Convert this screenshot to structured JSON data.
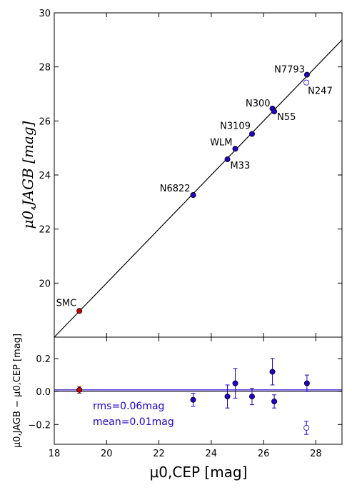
{
  "colors": {
    "point": "#2200cc",
    "smc": "#cc0000",
    "open": "#ffffff",
    "line_main": "#000000",
    "resid_zero": "#000000",
    "resid_mean": "#2200cc",
    "note": "#2200cc"
  },
  "chart_data": [
    {
      "type": "scatter",
      "title": "",
      "xlabel": "μ0,CEP [mag]",
      "ylabel": "μ0,JAGB [mag]",
      "xlim": [
        18,
        29
      ],
      "ylim": [
        18,
        30
      ],
      "x_ticks": [
        "18",
        "20",
        "22",
        "24",
        "26",
        "28"
      ],
      "y_ticks": [
        "20",
        "22",
        "24",
        "26",
        "28",
        "30"
      ],
      "identity_line": {
        "x": [
          18,
          29
        ],
        "y": [
          18,
          29
        ]
      },
      "points": [
        {
          "label": "SMC",
          "x": 18.96,
          "y": 18.97,
          "kind": "smc"
        },
        {
          "label": "N6822",
          "x": 23.31,
          "y": 23.26,
          "kind": "filled"
        },
        {
          "label": "M33",
          "x": 24.62,
          "y": 24.58,
          "kind": "filled"
        },
        {
          "label": "WLM",
          "x": 24.92,
          "y": 24.97,
          "kind": "filled"
        },
        {
          "label": "N3109",
          "x": 25.56,
          "y": 25.52,
          "kind": "filled"
        },
        {
          "label": "N300",
          "x": 26.34,
          "y": 26.46,
          "kind": "filled"
        },
        {
          "label": "N55",
          "x": 26.41,
          "y": 26.35,
          "kind": "filled"
        },
        {
          "label": "N7793",
          "x": 27.66,
          "y": 27.71,
          "kind": "filled"
        },
        {
          "label": "N247",
          "x": 27.64,
          "y": 27.42,
          "kind": "open"
        }
      ]
    },
    {
      "type": "scatter",
      "title": "",
      "xlabel": "μ0,CEP [mag]",
      "ylabel": "μ0,JAGB − μ0,CEP [mag]",
      "xlim": [
        18,
        29
      ],
      "ylim": [
        -0.32,
        0.33
      ],
      "x_ticks": [
        "18",
        "20",
        "22",
        "24",
        "26",
        "28"
      ],
      "y_ticks": [
        "−0.2",
        "0.0",
        "0.2"
      ],
      "annotations": [
        "rms=0.06mag",
        "mean=0.01mag"
      ],
      "zero_line": 0.0,
      "mean_line": 0.01,
      "points": [
        {
          "x": 18.96,
          "y": 0.01,
          "err": 0.02,
          "kind": "smc"
        },
        {
          "x": 23.31,
          "y": -0.05,
          "err": 0.04,
          "kind": "filled"
        },
        {
          "x": 24.62,
          "y": -0.03,
          "err": 0.07,
          "kind": "filled"
        },
        {
          "x": 24.92,
          "y": 0.05,
          "err": 0.09,
          "kind": "filled"
        },
        {
          "x": 25.56,
          "y": -0.03,
          "err": 0.05,
          "kind": "filled"
        },
        {
          "x": 26.34,
          "y": 0.12,
          "err": 0.08,
          "kind": "filled"
        },
        {
          "x": 26.41,
          "y": -0.06,
          "err": 0.04,
          "kind": "filled"
        },
        {
          "x": 27.66,
          "y": 0.05,
          "err": 0.05,
          "kind": "filled"
        },
        {
          "x": 27.64,
          "y": -0.22,
          "err": 0.04,
          "kind": "open"
        }
      ]
    }
  ]
}
